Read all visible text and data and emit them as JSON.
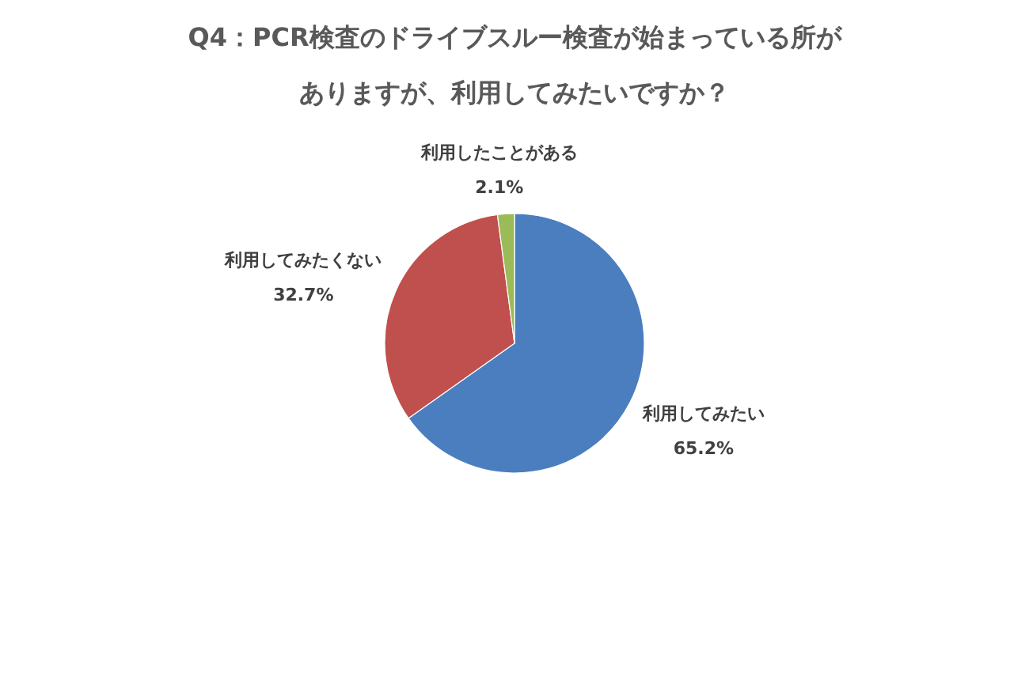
{
  "chart_data": {
    "type": "pie",
    "title": "Q4：PCR検査のドライブスルー検査が始まっている所がありますが、利用してみたいですか？",
    "categories": [
      "利用してみたい",
      "利用してみたくない",
      "利用したことがある"
    ],
    "values": [
      65.2,
      32.7,
      2.1
    ],
    "colors": [
      "#4a7ebf",
      "#c0504d",
      "#9bbb59"
    ],
    "value_labels": [
      "65.2%",
      "32.7%",
      "2.1%"
    ]
  }
}
